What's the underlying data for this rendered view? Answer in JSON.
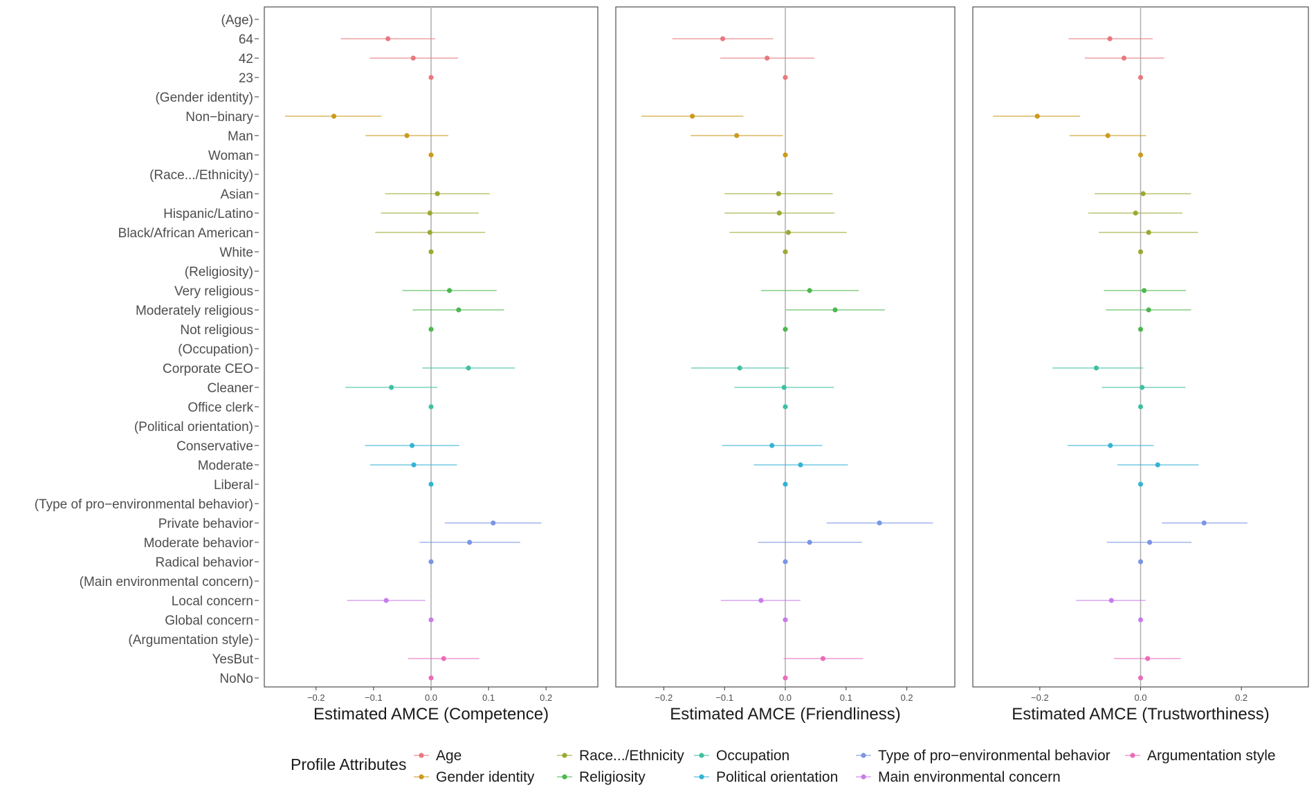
{
  "chart_data": {
    "type": "forest",
    "rows": [
      {
        "label": "(Age)",
        "header": true
      },
      {
        "label": "64",
        "group": "Age"
      },
      {
        "label": "42",
        "group": "Age"
      },
      {
        "label": "23",
        "group": "Age"
      },
      {
        "label": "(Gender identity)",
        "header": true
      },
      {
        "label": "Non−binary",
        "group": "Gender identity"
      },
      {
        "label": "Man",
        "group": "Gender identity"
      },
      {
        "label": "Woman",
        "group": "Gender identity"
      },
      {
        "label": "(Race.../Ethnicity)",
        "header": true
      },
      {
        "label": "Asian",
        "group": "Race.../Ethnicity"
      },
      {
        "label": "Hispanic/Latino",
        "group": "Race.../Ethnicity"
      },
      {
        "label": "Black/African American",
        "group": "Race.../Ethnicity"
      },
      {
        "label": "White",
        "group": "Race.../Ethnicity"
      },
      {
        "label": "(Religiosity)",
        "header": true
      },
      {
        "label": "Very religious",
        "group": "Religiosity"
      },
      {
        "label": "Moderately religious",
        "group": "Religiosity"
      },
      {
        "label": "Not religious",
        "group": "Religiosity"
      },
      {
        "label": "(Occupation)",
        "header": true
      },
      {
        "label": "Corporate CEO",
        "group": "Occupation"
      },
      {
        "label": "Cleaner",
        "group": "Occupation"
      },
      {
        "label": "Office clerk",
        "group": "Occupation"
      },
      {
        "label": "(Political orientation)",
        "header": true
      },
      {
        "label": "Conservative",
        "group": "Political orientation"
      },
      {
        "label": "Moderate",
        "group": "Political orientation"
      },
      {
        "label": "Liberal",
        "group": "Political orientation"
      },
      {
        "label": "(Type of pro−environmental behavior)",
        "header": true
      },
      {
        "label": "Private behavior",
        "group": "Type of pro−environmental behavior"
      },
      {
        "label": "Moderate behavior",
        "group": "Type of pro−environmental behavior"
      },
      {
        "label": "Radical behavior",
        "group": "Type of pro−environmental behavior"
      },
      {
        "label": "(Main environmental concern)",
        "header": true
      },
      {
        "label": "Local concern",
        "group": "Main environmental concern"
      },
      {
        "label": "Global concern",
        "group": "Main environmental concern"
      },
      {
        "label": "(Argumentation style)",
        "header": true
      },
      {
        "label": "YesBut",
        "group": "Argumentation style"
      },
      {
        "label": "NoNo",
        "group": "Argumentation style"
      }
    ],
    "panels": [
      {
        "xlabel": "Estimated AMCE (Competence)",
        "xlim": [
          -0.29,
          0.29
        ],
        "ticks": [
          -0.2,
          -0.1,
          0.0,
          0.1,
          0.2
        ],
        "tick_labels": [
          "−0.2",
          "−0.1",
          "0.0",
          "0.1",
          "0.2"
        ],
        "estimates": [
          null,
          [
            -0.075,
            -0.157,
            0.007
          ],
          [
            -0.031,
            -0.107,
            0.047
          ],
          [
            0,
            0,
            0
          ],
          null,
          [
            -0.169,
            -0.254,
            -0.086
          ],
          [
            -0.042,
            -0.114,
            0.03
          ],
          [
            0,
            0,
            0
          ],
          null,
          [
            0.011,
            -0.08,
            0.102
          ],
          [
            -0.002,
            -0.087,
            0.083
          ],
          [
            -0.002,
            -0.097,
            0.094
          ],
          [
            0,
            0,
            0
          ],
          null,
          [
            0.032,
            -0.05,
            0.114
          ],
          [
            0.048,
            -0.032,
            0.127
          ],
          [
            0,
            0,
            0
          ],
          null,
          [
            0.065,
            -0.015,
            0.146
          ],
          [
            -0.069,
            -0.149,
            0.011
          ],
          [
            0,
            0,
            0
          ],
          null,
          [
            -0.033,
            -0.115,
            0.049
          ],
          [
            -0.03,
            -0.106,
            0.045
          ],
          [
            0,
            0,
            0
          ],
          null,
          [
            0.108,
            0.024,
            0.192
          ],
          [
            0.067,
            -0.02,
            0.155
          ],
          [
            0,
            0,
            0
          ],
          null,
          [
            -0.078,
            -0.146,
            -0.01
          ],
          [
            0,
            0,
            0
          ],
          null,
          [
            0.022,
            -0.04,
            0.084
          ],
          [
            0,
            0,
            0
          ]
        ]
      },
      {
        "xlabel": "Estimated AMCE (Friendliness)",
        "xlim": [
          -0.279,
          0.279
        ],
        "ticks": [
          -0.2,
          -0.1,
          0.0,
          0.1,
          0.2
        ],
        "tick_labels": [
          "−0.2",
          "−0.1",
          "0.0",
          "0.1",
          "0.2"
        ],
        "estimates": [
          null,
          [
            -0.103,
            -0.186,
            -0.02
          ],
          [
            -0.03,
            -0.107,
            0.048
          ],
          [
            0,
            0,
            0
          ],
          null,
          [
            -0.153,
            -0.237,
            -0.069
          ],
          [
            -0.08,
            -0.156,
            -0.004
          ],
          [
            0,
            0,
            0
          ],
          null,
          [
            -0.011,
            -0.1,
            0.078
          ],
          [
            -0.01,
            -0.1,
            0.081
          ],
          [
            0.005,
            -0.092,
            0.101
          ],
          [
            0,
            0,
            0
          ],
          null,
          [
            0.04,
            -0.04,
            0.121
          ],
          [
            0.082,
            0.001,
            0.164
          ],
          [
            0,
            0,
            0
          ],
          null,
          [
            -0.075,
            -0.155,
            0.006
          ],
          [
            -0.002,
            -0.084,
            0.08
          ],
          [
            0,
            0,
            0
          ],
          null,
          [
            -0.022,
            -0.104,
            0.061
          ],
          [
            0.025,
            -0.052,
            0.103
          ],
          [
            0,
            0,
            0
          ],
          null,
          [
            0.155,
            0.068,
            0.243
          ],
          [
            0.04,
            -0.045,
            0.126
          ],
          [
            0,
            0,
            0
          ],
          null,
          [
            -0.04,
            -0.106,
            0.025
          ],
          [
            0,
            0,
            0
          ],
          null,
          [
            0.062,
            -0.003,
            0.128
          ],
          [
            0,
            0,
            0
          ]
        ]
      },
      {
        "xlabel": "Estimated AMCE (Trustworthiness)",
        "xlim": [
          -0.333,
          0.333
        ],
        "ticks": [
          -0.2,
          0.0,
          0.2
        ],
        "tick_labels": [
          "−0.2",
          "0.0",
          "0.2"
        ],
        "estimates": [
          null,
          [
            -0.061,
            -0.143,
            0.024
          ],
          [
            -0.033,
            -0.111,
            0.047
          ],
          [
            0,
            0,
            0
          ],
          null,
          [
            -0.205,
            -0.293,
            -0.12
          ],
          [
            -0.065,
            -0.141,
            0.011
          ],
          [
            0,
            0,
            0
          ],
          null,
          [
            0.005,
            -0.091,
            0.1
          ],
          [
            -0.01,
            -0.104,
            0.083
          ],
          [
            0.016,
            -0.083,
            0.114
          ],
          [
            0,
            0,
            0
          ],
          null,
          [
            0.007,
            -0.073,
            0.09
          ],
          [
            0.016,
            -0.069,
            0.1
          ],
          [
            0,
            0,
            0
          ],
          null,
          [
            -0.088,
            -0.175,
            0.005
          ],
          [
            0.003,
            -0.077,
            0.089
          ],
          [
            0,
            0,
            0
          ],
          null,
          [
            -0.06,
            -0.145,
            0.026
          ],
          [
            0.034,
            -0.046,
            0.115
          ],
          [
            0,
            0,
            0
          ],
          null,
          [
            0.126,
            0.042,
            0.212
          ],
          [
            0.018,
            -0.067,
            0.101
          ],
          [
            0,
            0,
            0
          ],
          null,
          [
            -0.058,
            -0.128,
            0.01
          ],
          [
            0,
            0,
            0
          ],
          null,
          [
            0.014,
            -0.053,
            0.08
          ],
          [
            0,
            0,
            0
          ]
        ]
      }
    ],
    "legend": {
      "title": "Profile Attributes",
      "entries": [
        {
          "name": "Age",
          "color": "#e8787e"
        },
        {
          "name": "Gender identity",
          "color": "#cc9a1c"
        },
        {
          "name": "Race.../Ethnicity",
          "color": "#9ca832"
        },
        {
          "name": "Religiosity",
          "color": "#4cb84e"
        },
        {
          "name": "Occupation",
          "color": "#3fbfa2"
        },
        {
          "name": "Political orientation",
          "color": "#35b3d4"
        },
        {
          "name": "Type of pro−environmental behavior",
          "color": "#7a95e4"
        },
        {
          "name": "Main environmental concern",
          "color": "#c77cea"
        },
        {
          "name": "Argumentation style",
          "color": "#ec6bb8"
        }
      ]
    }
  }
}
